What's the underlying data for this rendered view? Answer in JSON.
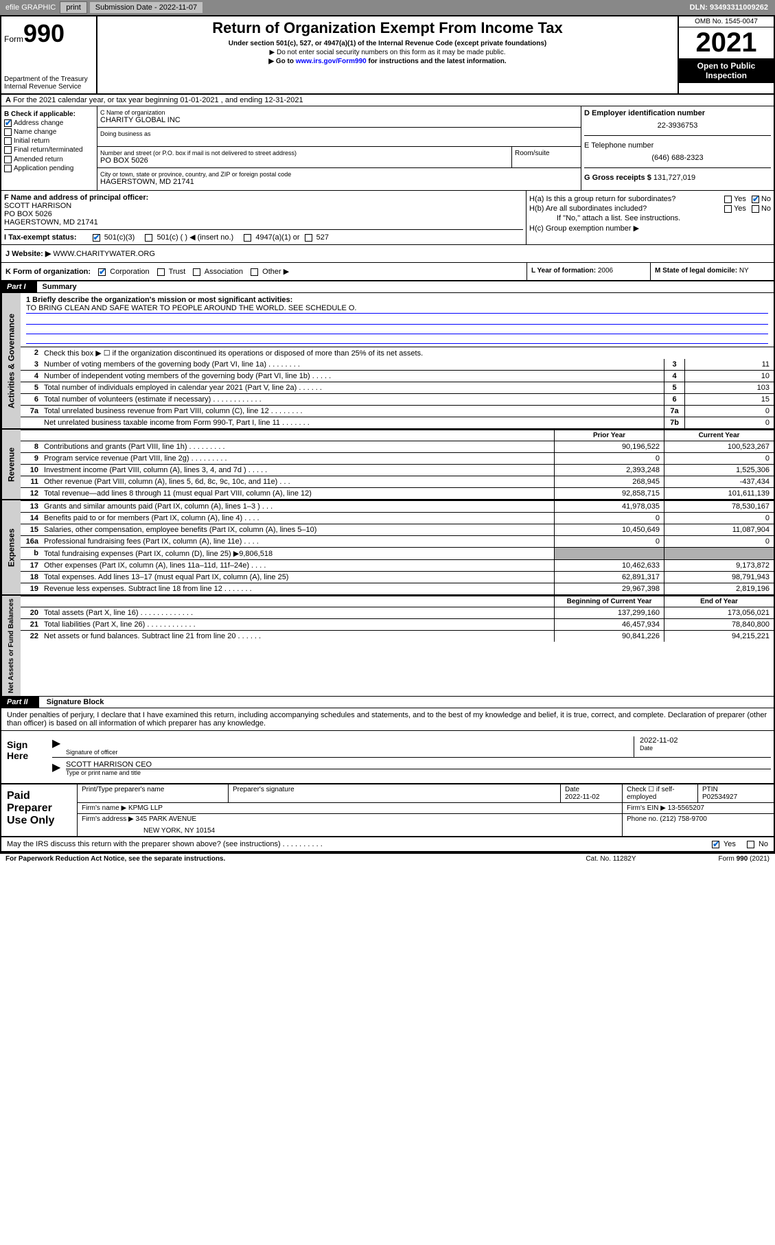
{
  "topbar": {
    "efile": "efile GRAPHIC",
    "print": "print",
    "submission": "Submission Date - 2022-11-07",
    "dln": "DLN: 93493311009262"
  },
  "header": {
    "form_prefix": "Form",
    "form_num": "990",
    "title": "Return of Organization Exempt From Income Tax",
    "sub1": "Under section 501(c), 527, or 4947(a)(1) of the Internal Revenue Code (except private foundations)",
    "sub2": "▶ Do not enter social security numbers on this form as it may be made public.",
    "sub3_pre": "▶ Go to ",
    "sub3_link": "www.irs.gov/Form990",
    "sub3_post": " for instructions and the latest information.",
    "dept1": "Department of the Treasury",
    "dept2": "Internal Revenue Service",
    "omb": "OMB No. 1545-0047",
    "year": "2021",
    "inspection": "Open to Public Inspection"
  },
  "rowA": "For the 2021 calendar year, or tax year beginning 01-01-2021   , and ending 12-31-2021",
  "sectionB": {
    "title": "B Check if applicable:",
    "addr_change": "Address change",
    "name_change": "Name change",
    "initial": "Initial return",
    "final": "Final return/terminated",
    "amended": "Amended return",
    "app_pending": "Application pending"
  },
  "sectionC": {
    "name_lbl": "C Name of organization",
    "name": "CHARITY GLOBAL INC",
    "dba_lbl": "Doing business as",
    "addr_lbl": "Number and street (or P.O. box if mail is not delivered to street address)",
    "room_lbl": "Room/suite",
    "addr": "PO BOX 5026",
    "city_lbl": "City or town, state or province, country, and ZIP or foreign postal code",
    "city": "HAGERSTOWN, MD  21741"
  },
  "sectionD": {
    "ein_lbl": "D Employer identification number",
    "ein": "22-3936753",
    "tel_lbl": "E Telephone number",
    "tel": "(646) 688-2323",
    "gross_lbl": "G Gross receipts $",
    "gross": "131,727,019"
  },
  "sectionF": {
    "lbl": "F Name and address of principal officer:",
    "name": "SCOTT HARRISON",
    "addr1": "PO BOX 5026",
    "addr2": "HAGERSTOWN, MD  21741"
  },
  "sectionH": {
    "a_lbl": "H(a)  Is this a group return for subordinates?",
    "b_lbl": "H(b)  Are all subordinates included?",
    "note": "If \"No,\" attach a list. See instructions.",
    "c_lbl": "H(c)  Group exemption number ▶"
  },
  "sectionI": {
    "lbl": "I   Tax-exempt status:",
    "o1": "501(c)(3)",
    "o2": "501(c) (   ) ◀ (insert no.)",
    "o3": "4947(a)(1) or",
    "o4": "527"
  },
  "sectionJ": {
    "lbl": "J   Website: ▶",
    "val": "WWW.CHARITYWATER.ORG"
  },
  "sectionK": {
    "lbl": "K Form of organization:",
    "o1": "Corporation",
    "o2": "Trust",
    "o3": "Association",
    "o4": "Other ▶"
  },
  "sectionL": {
    "lbl": "L Year of formation:",
    "val": "2006"
  },
  "sectionM": {
    "lbl": "M State of legal domicile:",
    "val": "NY"
  },
  "part1": {
    "header": "Part I",
    "title": "Summary",
    "q1_lbl": "1   Briefly describe the organization's mission or most significant activities:",
    "q1_val": "TO BRING CLEAN AND SAFE WATER TO PEOPLE AROUND THE WORLD. SEE SCHEDULE O.",
    "q2": "Check this box ▶ ☐  if the organization discontinued its operations or disposed of more than 25% of its net assets.",
    "vert1": "Activities & Governance",
    "vert2": "Revenue",
    "vert3": "Expenses",
    "vert4": "Net Assets or Fund Balances",
    "rows_gov": [
      {
        "n": "3",
        "t": "Number of voting members of the governing body (Part VI, line 1a)   .    .    .    .    .    .    .    .",
        "bn": "3",
        "v": "11"
      },
      {
        "n": "4",
        "t": "Number of independent voting members of the governing body (Part VI, line 1b)   .    .    .    .    .",
        "bn": "4",
        "v": "10"
      },
      {
        "n": "5",
        "t": "Total number of individuals employed in calendar year 2021 (Part V, line 2a)   .    .    .    .    .    .",
        "bn": "5",
        "v": "103"
      },
      {
        "n": "6",
        "t": "Total number of volunteers (estimate if necessary)   .    .    .    .    .    .    .    .    .    .    .    .",
        "bn": "6",
        "v": "15"
      },
      {
        "n": "7a",
        "t": "Total unrelated business revenue from Part VIII, column (C), line 12   .    .    .    .    .    .    .    .",
        "bn": "7a",
        "v": "0"
      },
      {
        "n": "",
        "t": "Net unrelated business taxable income from Form 990-T, Part I, line 11   .    .    .    .    .    .    .",
        "bn": "7b",
        "v": "0"
      }
    ],
    "col_prior": "Prior Year",
    "col_current": "Current Year",
    "col_begin": "Beginning of Current Year",
    "col_end": "End of Year",
    "rows_rev": [
      {
        "n": "8",
        "t": "Contributions and grants (Part VIII, line 1h)   .    .    .    .    .    .    .    .    .",
        "v1": "90,196,522",
        "v2": "100,523,267"
      },
      {
        "n": "9",
        "t": "Program service revenue (Part VIII, line 2g)   .    .    .    .    .    .    .    .    .",
        "v1": "0",
        "v2": "0"
      },
      {
        "n": "10",
        "t": "Investment income (Part VIII, column (A), lines 3, 4, and 7d )   .    .    .    .    .",
        "v1": "2,393,248",
        "v2": "1,525,306"
      },
      {
        "n": "11",
        "t": "Other revenue (Part VIII, column (A), lines 5, 6d, 8c, 9c, 10c, and 11e)   .    .    .",
        "v1": "268,945",
        "v2": "-437,434"
      },
      {
        "n": "12",
        "t": "Total revenue—add lines 8 through 11 (must equal Part VIII, column (A), line 12)",
        "v1": "92,858,715",
        "v2": "101,611,139"
      }
    ],
    "rows_exp": [
      {
        "n": "13",
        "t": "Grants and similar amounts paid (Part IX, column (A), lines 1–3 )   .    .    .",
        "v1": "41,978,035",
        "v2": "78,530,167"
      },
      {
        "n": "14",
        "t": "Benefits paid to or for members (Part IX, column (A), line 4)   .    .    .    .",
        "v1": "0",
        "v2": "0"
      },
      {
        "n": "15",
        "t": "Salaries, other compensation, employee benefits (Part IX, column (A), lines 5–10)",
        "v1": "10,450,649",
        "v2": "11,087,904"
      },
      {
        "n": "16a",
        "t": "Professional fundraising fees (Part IX, column (A), line 11e)   .    .    .    .",
        "v1": "0",
        "v2": "0"
      },
      {
        "n": "b",
        "t": "Total fundraising expenses (Part IX, column (D), line 25)  ▶9,806,518",
        "v1": "",
        "v2": "",
        "shaded": true
      },
      {
        "n": "17",
        "t": "Other expenses (Part IX, column (A), lines 11a–11d, 11f–24e)   .    .    .    .",
        "v1": "10,462,633",
        "v2": "9,173,872"
      },
      {
        "n": "18",
        "t": "Total expenses. Add lines 13–17 (must equal Part IX, column (A), line 25)",
        "v1": "62,891,317",
        "v2": "98,791,943"
      },
      {
        "n": "19",
        "t": "Revenue less expenses. Subtract line 18 from line 12   .    .    .    .    .    .    .",
        "v1": "29,967,398",
        "v2": "2,819,196"
      }
    ],
    "rows_net": [
      {
        "n": "20",
        "t": "Total assets (Part X, line 16)   .    .    .    .    .    .    .    .    .    .    .    .    .",
        "v1": "137,299,160",
        "v2": "173,056,021"
      },
      {
        "n": "21",
        "t": "Total liabilities (Part X, line 26)   .    .    .    .    .    .    .    .    .    .    .    .",
        "v1": "46,457,934",
        "v2": "78,840,800"
      },
      {
        "n": "22",
        "t": "Net assets or fund balances. Subtract line 21 from line 20   .    .    .    .    .    .",
        "v1": "90,841,226",
        "v2": "94,215,221"
      }
    ]
  },
  "part2": {
    "header": "Part II",
    "title": "Signature Block",
    "text": "Under penalties of perjury, I declare that I have examined this return, including accompanying schedules and statements, and to the best of my knowledge and belief, it is true, correct, and complete. Declaration of preparer (other than officer) is based on all information of which preparer has any knowledge."
  },
  "sign": {
    "lbl": "Sign Here",
    "sig_lbl": "Signature of officer",
    "date": "2022-11-02",
    "date_lbl": "Date",
    "name": "SCOTT HARRISON CEO",
    "name_lbl": "Type or print name and title"
  },
  "preparer": {
    "lbl": "Paid Preparer Use Only",
    "h1": "Print/Type preparer's name",
    "h2": "Preparer's signature",
    "h3": "Date",
    "h3v": "2022-11-02",
    "h4": "Check ☐ if self-employed",
    "h5": "PTIN",
    "h5v": "P02534927",
    "firm_name_lbl": "Firm's name    ▶",
    "firm_name": "KPMG LLP",
    "firm_ein_lbl": "Firm's EIN ▶",
    "firm_ein": "13-5565207",
    "firm_addr_lbl": "Firm's address ▶",
    "firm_addr1": "345 PARK AVENUE",
    "firm_addr2": "NEW YORK, NY  10154",
    "phone_lbl": "Phone no.",
    "phone": "(212) 758-9700"
  },
  "footer": {
    "discuss": "May the IRS discuss this return with the preparer shown above? (see instructions)   .    .    .    .    .    .    .    .    .    .",
    "yes": "Yes",
    "no": "No",
    "paperwork": "For Paperwork Reduction Act Notice, see the separate instructions.",
    "cat": "Cat. No. 11282Y",
    "form": "Form 990 (2021)"
  }
}
